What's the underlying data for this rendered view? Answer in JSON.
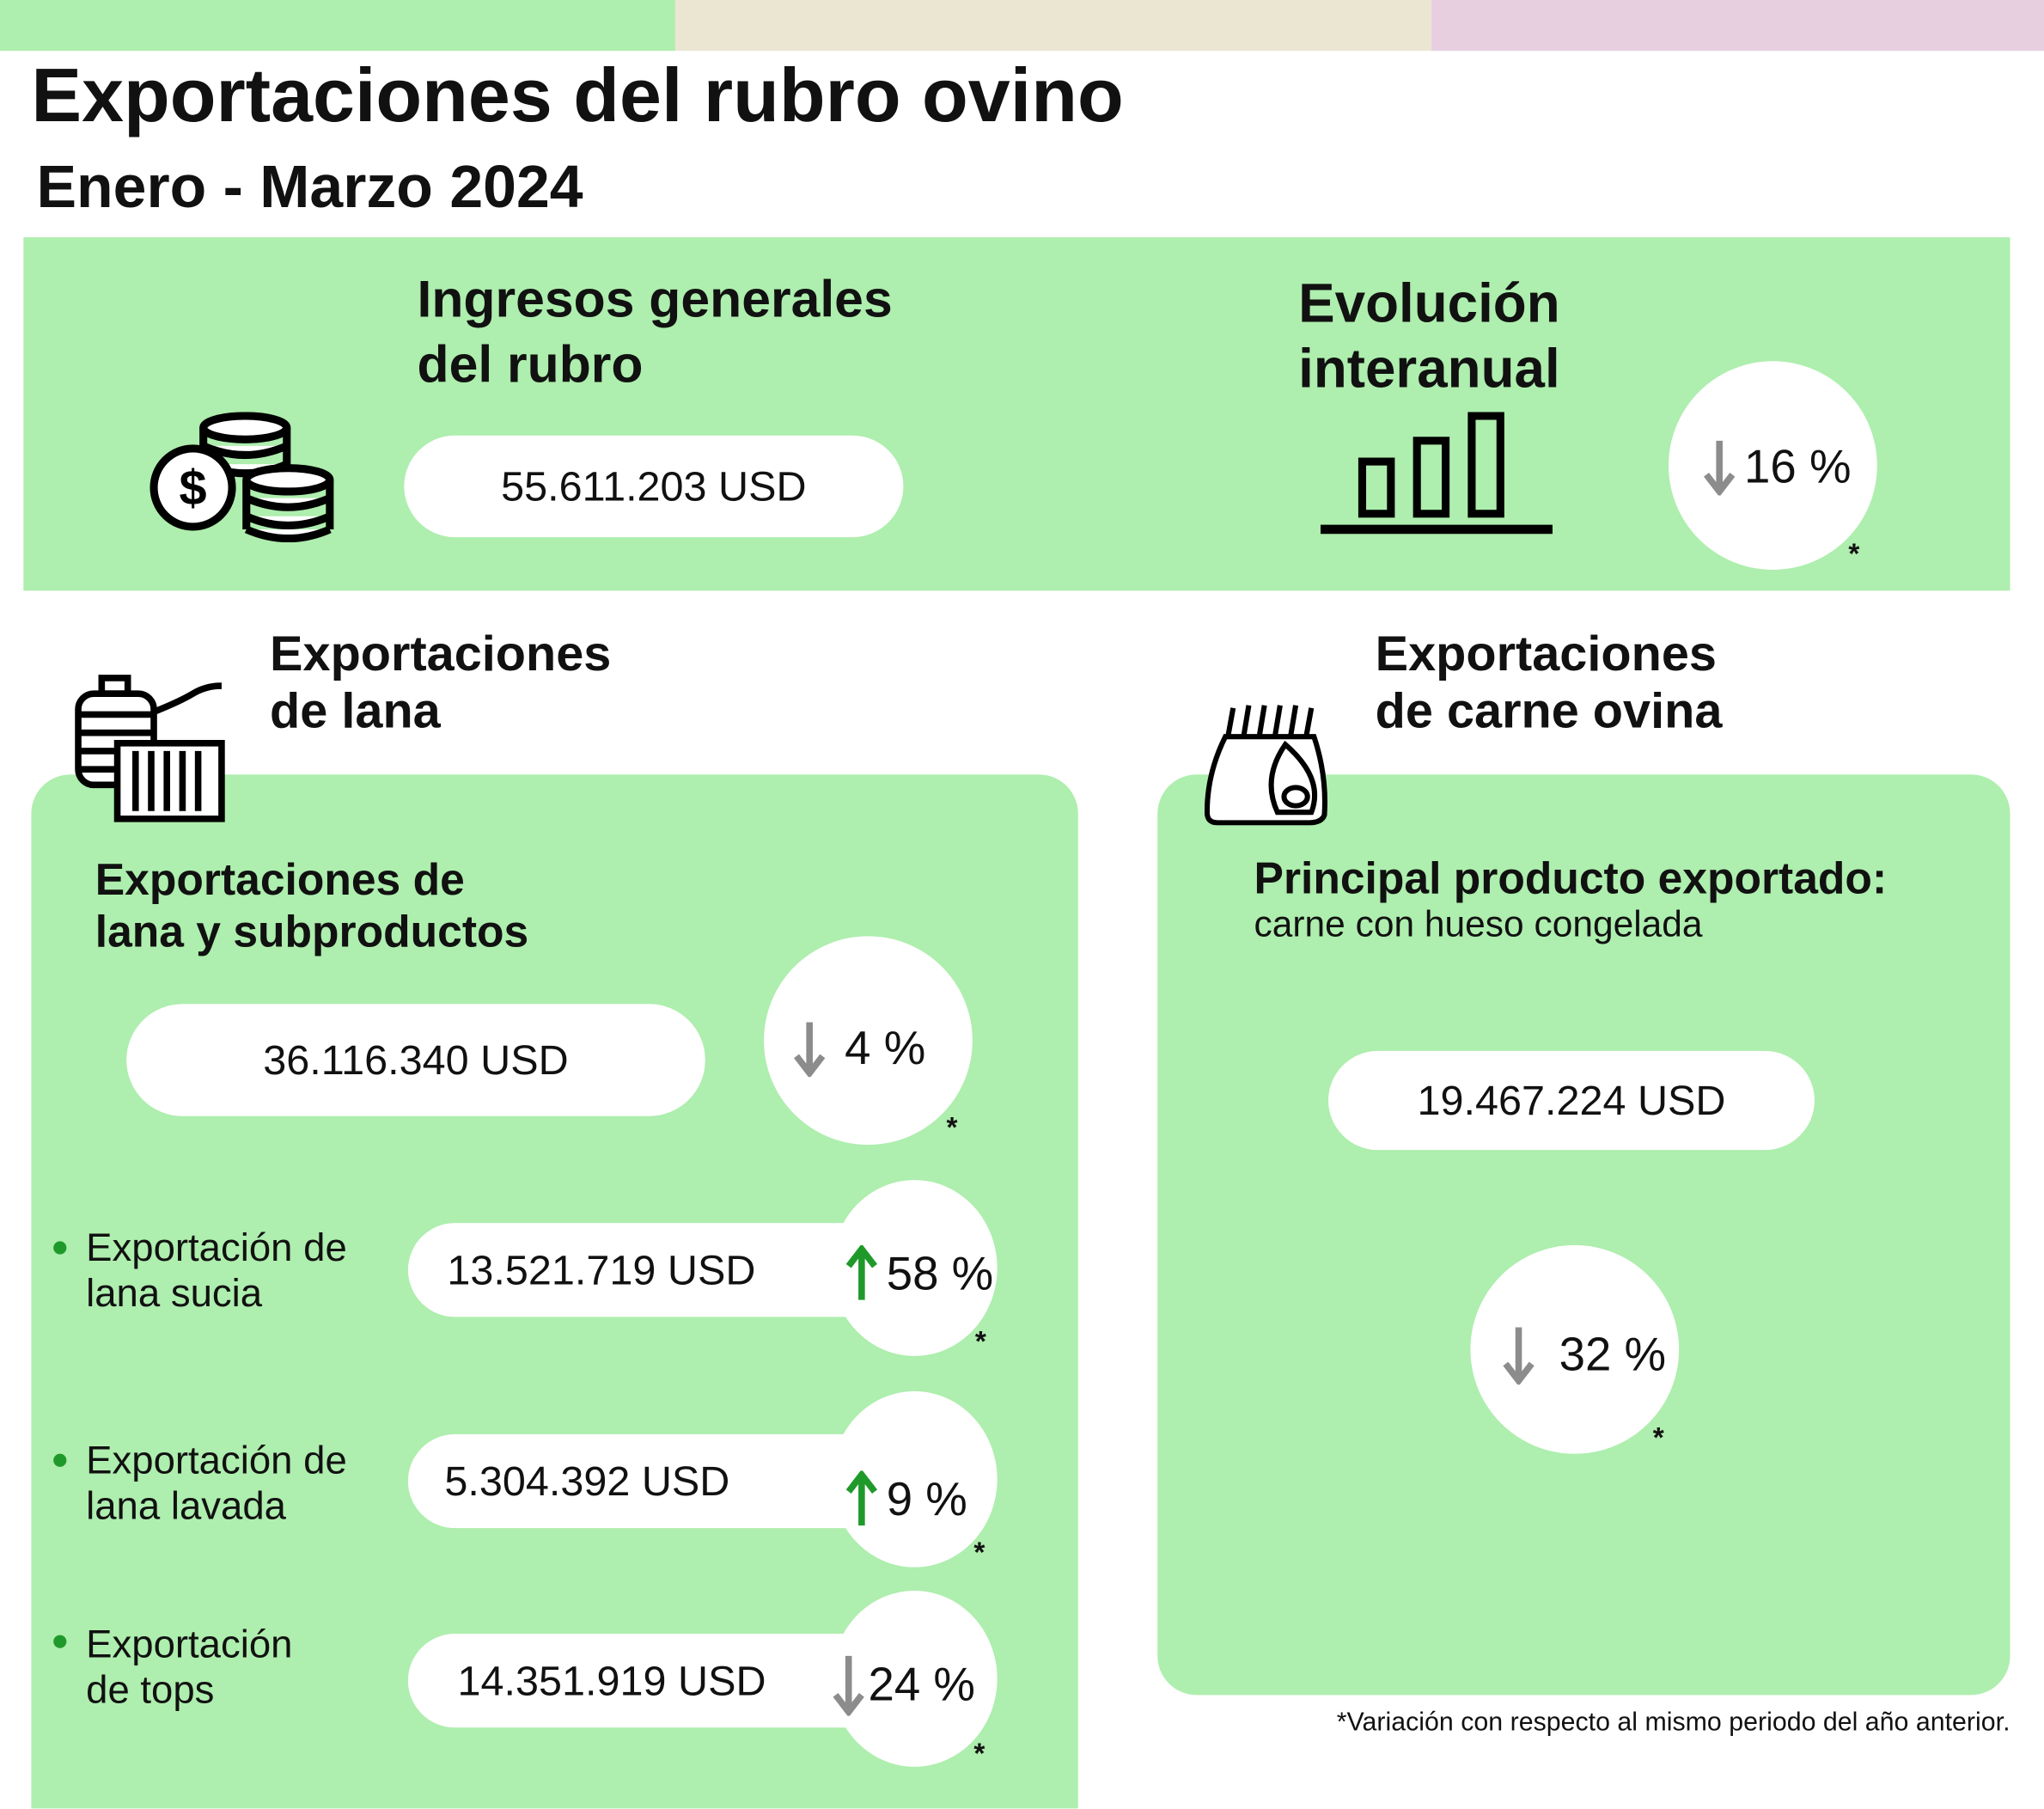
{
  "header": {
    "title": "Exportaciones del rubro ovino",
    "subtitle": "Enero - Marzo 2024",
    "stripe_colors": [
      "#aeeeae",
      "#ebe6d2",
      "#e7cfe0"
    ]
  },
  "general": {
    "heading_line1": "Ingresos generales",
    "heading_line2": "del rubro",
    "value": "55.611.203 USD",
    "evolution_line1": "Evolución",
    "evolution_line2": "interanual",
    "variation": "16 %",
    "direction": "down",
    "asterisk": "*"
  },
  "lana": {
    "section_line1": "Exportaciones",
    "section_line2": "de lana",
    "sub_line1": "Exportaciones de",
    "sub_line2": "lana y subproductos",
    "value": "36.116.340 USD",
    "variation": "4 %",
    "direction": "down",
    "asterisk": "*",
    "items": [
      {
        "line1": "Exportación de",
        "line2": "lana sucia",
        "value": "13.521.719 USD",
        "variation": "58 %",
        "direction": "up",
        "asterisk": "*"
      },
      {
        "line1": "Exportación de",
        "line2": "lana lavada",
        "value": "5.304.392 USD",
        "variation": "9 %",
        "direction": "up",
        "asterisk": "*"
      },
      {
        "line1": "Exportación",
        "line2": "de tops",
        "value": "14.351.919 USD",
        "variation": "24 %",
        "direction": "down",
        "asterisk": "*"
      }
    ]
  },
  "carne": {
    "section_line1": "Exportaciones",
    "section_line2": "de carne ovina",
    "product_label": "Principal producto exportado:",
    "product_name": "carne con hueso congelada",
    "value": "19.467.224 USD",
    "variation": "32 %",
    "direction": "down",
    "asterisk": "*"
  },
  "footnote": "*Variación con respecto al mismo periodo del año anterior.",
  "colors": {
    "panel": "#aeeeae",
    "up": "#1f9a2a",
    "down": "#8c8c8c"
  }
}
